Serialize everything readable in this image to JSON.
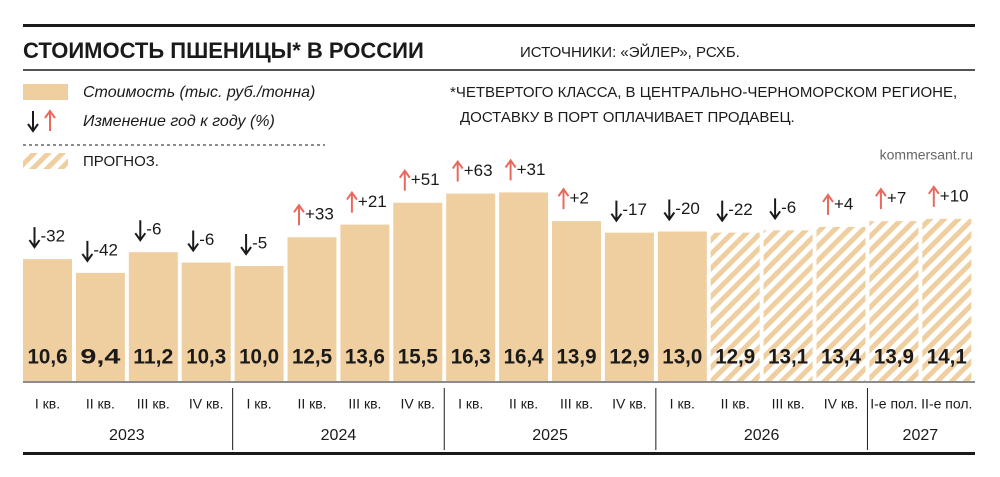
{
  "chart_data": {
    "type": "bar",
    "title": "СТОИМОСТЬ ПШЕНИЦЫ* В РОССИИ",
    "source": "ИСТОЧНИКИ: «ЭЙЛЕР», РСХБ.",
    "footnote": [
      "*ЧЕТВЕРТОГО КЛАССА, В ЦЕНТРАЛЬНО-ЧЕРНОМОРСКОМ РЕГИОНЕ,",
      "ДОСТАВКУ В ПОРТ ОПЛАЧИВАЕТ ПРОДАВЕЦ."
    ],
    "site": "kommersant.ru",
    "legend": {
      "value": "Стоимость (тыс. руб./тонна)",
      "change": "Изменение год к году (%)",
      "forecast": "ПРОГНОЗ."
    },
    "groups": [
      {
        "label": "2023",
        "categories": [
          "I кв.",
          "II кв.",
          "III кв.",
          "IV кв."
        ]
      },
      {
        "label": "2024",
        "categories": [
          "I кв.",
          "II кв.",
          "III кв.",
          "IV кв."
        ]
      },
      {
        "label": "2025",
        "categories": [
          "I кв.",
          "II кв.",
          "III кв.",
          "IV кв."
        ]
      },
      {
        "label": "2026",
        "categories": [
          "I кв.",
          "II кв.",
          "III кв.",
          "IV кв."
        ]
      },
      {
        "label": "2027",
        "categories": [
          "I-е пол.",
          "II-е пол."
        ]
      }
    ],
    "values": [
      10.6,
      9.4,
      11.2,
      10.3,
      10.0,
      12.5,
      13.6,
      15.5,
      16.3,
      16.4,
      13.9,
      12.9,
      13.0,
      12.9,
      13.1,
      13.4,
      13.9,
      14.1
    ],
    "value_labels": [
      "10,6",
      "9,4",
      "11,2",
      "10,3",
      "10,0",
      "12,5",
      "13,6",
      "15,5",
      "16,3",
      "16,4",
      "13,9",
      "12,9",
      "13,0",
      "12,9",
      "13,1",
      "13,4",
      "13,9",
      "14,1"
    ],
    "changes": [
      -32,
      -42,
      -6,
      -6,
      -5,
      33,
      21,
      51,
      63,
      31,
      2,
      -17,
      -20,
      -22,
      -6,
      4,
      7,
      10
    ],
    "change_labels": [
      "-32",
      "-42",
      "-6",
      "-6",
      "-5",
      "+33",
      "+21",
      "+51",
      "+63",
      "+31",
      "+2",
      "-17",
      "-20",
      "-22",
      "-6",
      "+4",
      "+7",
      "+10"
    ],
    "forecast": [
      false,
      false,
      false,
      false,
      false,
      false,
      false,
      false,
      false,
      false,
      false,
      false,
      false,
      true,
      true,
      true,
      true,
      true
    ],
    "color": "#efcf9f",
    "up_color": "#e86a5f",
    "down_color": "#1a1a1a"
  }
}
